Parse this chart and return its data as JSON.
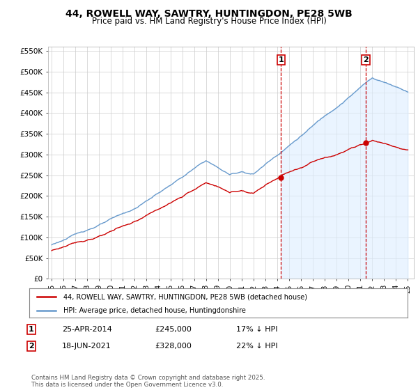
{
  "title": "44, ROWELL WAY, SAWTRY, HUNTINGDON, PE28 5WB",
  "subtitle": "Price paid vs. HM Land Registry's House Price Index (HPI)",
  "background_color": "#ffffff",
  "grid_color": "#cccccc",
  "hpi_color": "#6699cc",
  "hpi_fill_color": "#ddeeff",
  "price_color": "#cc0000",
  "marker1_year": 2014.32,
  "marker2_year": 2021.47,
  "marker1_value": 245000,
  "marker2_value": 328000,
  "legend1": "44, ROWELL WAY, SAWTRY, HUNTINGDON, PE28 5WB (detached house)",
  "legend2": "HPI: Average price, detached house, Huntingdonshire",
  "footer": "Contains HM Land Registry data © Crown copyright and database right 2025.\nThis data is licensed under the Open Government Licence v3.0.",
  "ylim": [
    0,
    560000
  ],
  "xlim_start": 1994.7,
  "xlim_end": 2025.5
}
